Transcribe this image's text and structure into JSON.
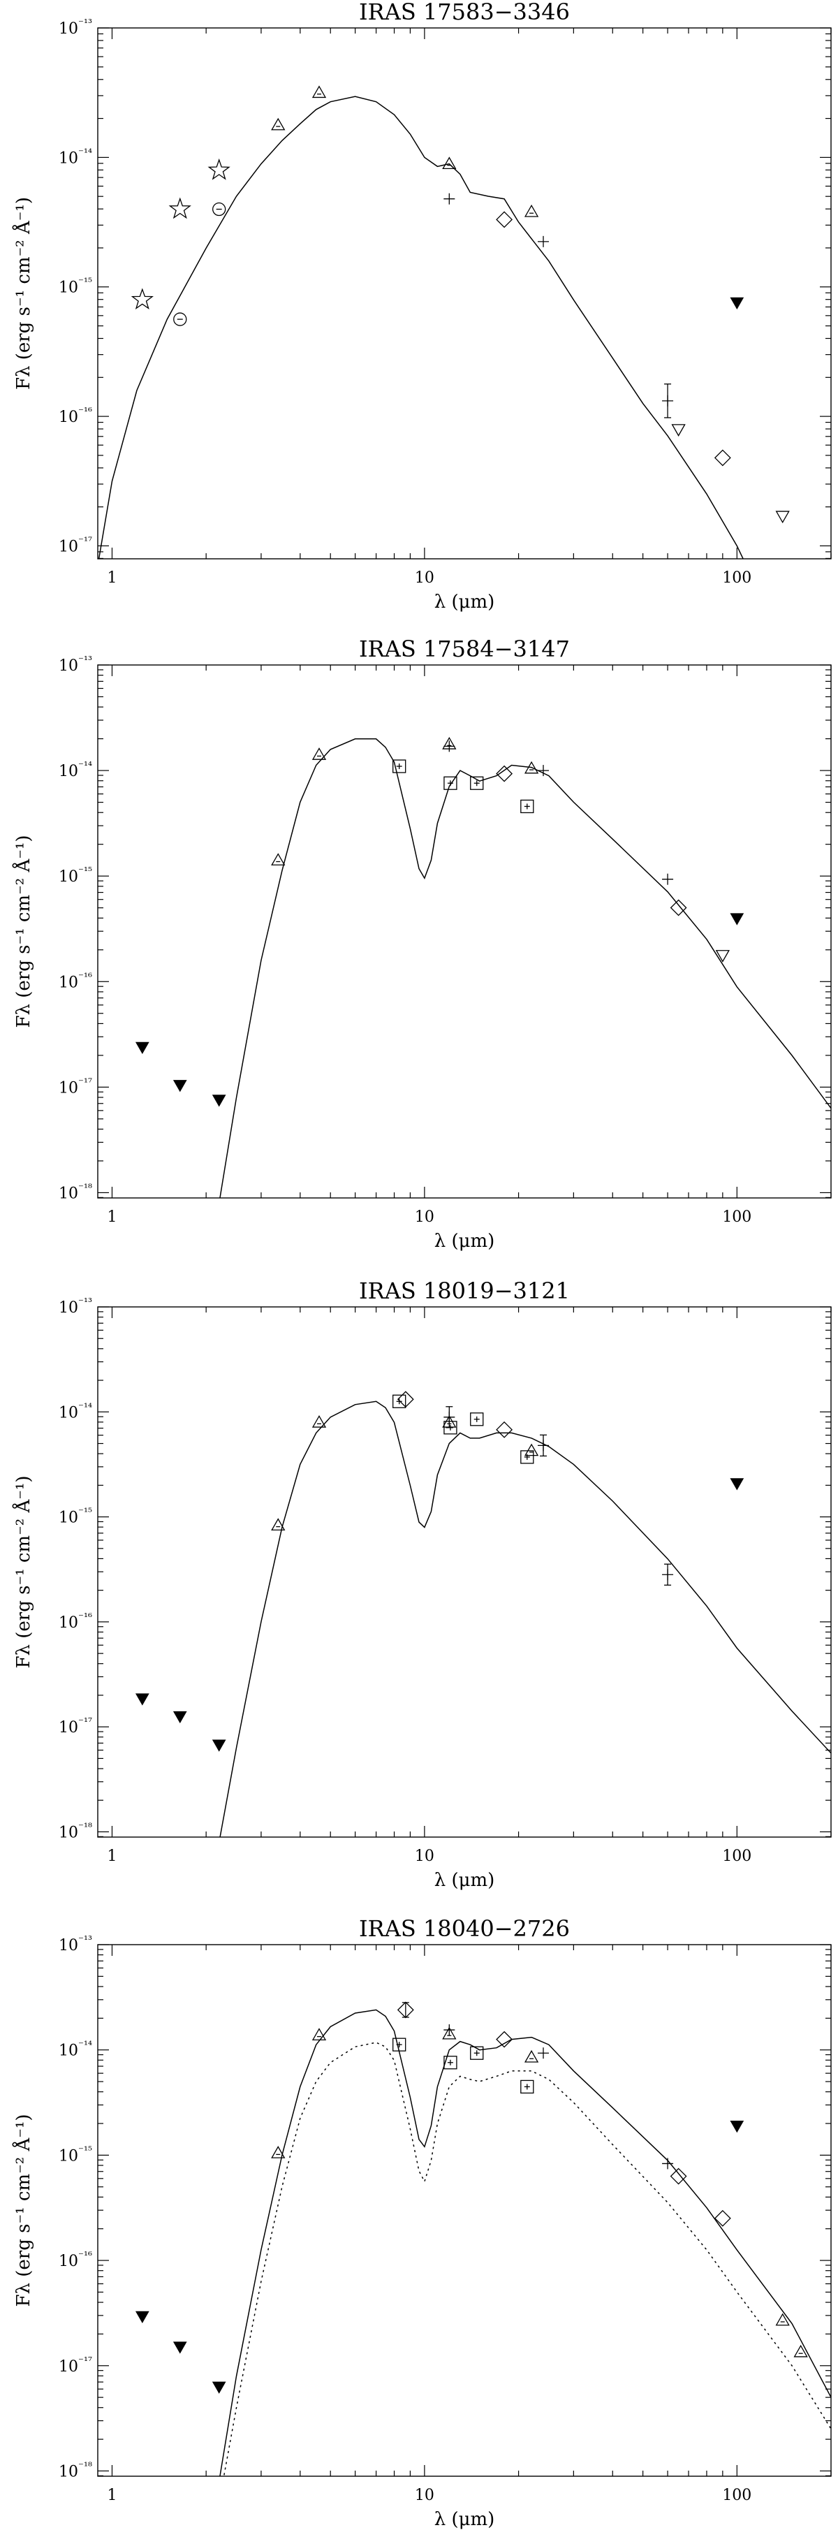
{
  "chart_data": [
    {
      "type": "scatter",
      "title": "IRAS 17583−3346",
      "xscale": "log",
      "yscale": "log",
      "xlim": [
        0.9,
        200
      ],
      "ylim_exp": [
        -17.1,
        -13
      ],
      "xticks": [
        1,
        10,
        100
      ],
      "xtick_labels": [
        "1",
        "10",
        "100"
      ],
      "yticks": [
        -17,
        -16,
        -15,
        -14,
        -13
      ],
      "xlabel": "λ (μm)",
      "ylabel": "Fλ (erg s⁻¹ cm⁻² Å⁻¹)",
      "model_solid": [
        [
          0.9,
          -17.15
        ],
        [
          1.0,
          -16.5
        ],
        [
          1.2,
          -15.8
        ],
        [
          1.5,
          -15.25
        ],
        [
          2.0,
          -14.7
        ],
        [
          2.5,
          -14.3
        ],
        [
          3.0,
          -14.05
        ],
        [
          3.5,
          -13.87
        ],
        [
          4.0,
          -13.74
        ],
        [
          4.5,
          -13.63
        ],
        [
          5.0,
          -13.57
        ],
        [
          6.0,
          -13.53
        ],
        [
          7.0,
          -13.57
        ],
        [
          8.0,
          -13.67
        ],
        [
          9.0,
          -13.82
        ],
        [
          10.0,
          -14.0
        ],
        [
          11.0,
          -14.07
        ],
        [
          12.0,
          -14.05
        ],
        [
          13.0,
          -14.13
        ],
        [
          14.0,
          -14.27
        ],
        [
          16.0,
          -14.3
        ],
        [
          18.0,
          -14.32
        ],
        [
          20.0,
          -14.5
        ],
        [
          25.0,
          -14.8
        ],
        [
          30.0,
          -15.1
        ],
        [
          40.0,
          -15.55
        ],
        [
          50.0,
          -15.9
        ],
        [
          60.0,
          -16.15
        ],
        [
          80.0,
          -16.6
        ],
        [
          100.0,
          -17.0
        ],
        [
          120.0,
          -17.4
        ]
      ],
      "model_dotted": [],
      "points": [
        {
          "m": "star",
          "x": 1.25,
          "y": -15.1
        },
        {
          "m": "star",
          "x": 1.65,
          "y": -14.4
        },
        {
          "m": "star",
          "x": 2.2,
          "y": -14.1
        },
        {
          "m": "circle",
          "x": 1.65,
          "y": -15.25
        },
        {
          "m": "circle",
          "x": 2.2,
          "y": -14.4
        },
        {
          "m": "triangle",
          "x": 3.4,
          "y": -13.75
        },
        {
          "m": "triangle",
          "x": 4.6,
          "y": -13.5
        },
        {
          "m": "triangle",
          "x": 12.0,
          "y": -14.05
        },
        {
          "m": "triangle",
          "x": 22.0,
          "y": -14.42
        },
        {
          "m": "plus",
          "x": 12.0,
          "y": -14.32
        },
        {
          "m": "plus",
          "x": 24.0,
          "y": -14.65
        },
        {
          "m": "plus",
          "x": 60.0,
          "y": -15.88,
          "err": 0.13
        },
        {
          "m": "diamond",
          "x": 18.0,
          "y": -14.48
        },
        {
          "m": "diamond",
          "x": 90.0,
          "y": -16.32
        },
        {
          "m": "tri_down",
          "x": 65.0,
          "y": -16.1
        },
        {
          "m": "tri_down",
          "x": 140.0,
          "y": -16.77
        },
        {
          "m": "tri_fill",
          "x": 100.0,
          "y": -15.12
        }
      ]
    },
    {
      "type": "scatter",
      "title": "IRAS 17584−3147",
      "xscale": "log",
      "yscale": "log",
      "xlim": [
        0.9,
        200
      ],
      "ylim_exp": [
        -18.05,
        -13
      ],
      "xticks": [
        1,
        10,
        100
      ],
      "xtick_labels": [
        "1",
        "10",
        "100"
      ],
      "yticks": [
        -18,
        -17,
        -16,
        -15,
        -14,
        -13
      ],
      "xlabel": "λ (μm)",
      "ylabel": "Fλ (erg s⁻¹ cm⁻² Å⁻¹)",
      "model_solid": [
        [
          2.2,
          -18.1
        ],
        [
          2.5,
          -17.1
        ],
        [
          3.0,
          -15.8
        ],
        [
          3.5,
          -14.95
        ],
        [
          4.0,
          -14.3
        ],
        [
          4.5,
          -13.95
        ],
        [
          5.0,
          -13.8
        ],
        [
          6.0,
          -13.7
        ],
        [
          7.0,
          -13.7
        ],
        [
          7.5,
          -13.78
        ],
        [
          8.0,
          -13.92
        ],
        [
          9.0,
          -14.55
        ],
        [
          9.6,
          -14.93
        ],
        [
          10.0,
          -15.02
        ],
        [
          10.5,
          -14.85
        ],
        [
          11.0,
          -14.5
        ],
        [
          12.0,
          -14.15
        ],
        [
          13.0,
          -14.0
        ],
        [
          14.0,
          -14.05
        ],
        [
          15.0,
          -14.1
        ],
        [
          17.0,
          -14.05
        ],
        [
          19.0,
          -13.95
        ],
        [
          22.0,
          -13.97
        ],
        [
          25.0,
          -14.05
        ],
        [
          30.0,
          -14.3
        ],
        [
          40.0,
          -14.65
        ],
        [
          60.0,
          -15.15
        ],
        [
          80.0,
          -15.6
        ],
        [
          100.0,
          -16.05
        ],
        [
          150.0,
          -16.7
        ],
        [
          200.0,
          -17.2
        ]
      ],
      "model_dotted": [],
      "points": [
        {
          "m": "tri_fill",
          "x": 1.25,
          "y": -16.62
        },
        {
          "m": "tri_fill",
          "x": 1.65,
          "y": -16.98
        },
        {
          "m": "tri_fill",
          "x": 2.2,
          "y": -17.12
        },
        {
          "m": "tri_fill",
          "x": 100.0,
          "y": -15.4
        },
        {
          "m": "triangle",
          "x": 3.4,
          "y": -14.85
        },
        {
          "m": "triangle",
          "x": 4.6,
          "y": -13.85
        },
        {
          "m": "triangle",
          "x": 12.0,
          "y": -13.75
        },
        {
          "m": "triangle",
          "x": 22.0,
          "y": -13.98
        },
        {
          "m": "square",
          "x": 8.3,
          "y": -13.96
        },
        {
          "m": "square",
          "x": 12.1,
          "y": -14.12
        },
        {
          "m": "square",
          "x": 14.7,
          "y": -14.12
        },
        {
          "m": "square",
          "x": 21.3,
          "y": -14.34
        },
        {
          "m": "plus",
          "x": 12.0,
          "y": -13.77
        },
        {
          "m": "plus",
          "x": 24.0,
          "y": -14.0
        },
        {
          "m": "plus",
          "x": 60.0,
          "y": -15.03
        },
        {
          "m": "diamond",
          "x": 18.0,
          "y": -14.03
        },
        {
          "m": "diamond",
          "x": 65.0,
          "y": -15.3
        },
        {
          "m": "tri_down",
          "x": 90.0,
          "y": -15.75
        }
      ]
    },
    {
      "type": "scatter",
      "title": "IRAS 18019−3121",
      "xscale": "log",
      "yscale": "log",
      "xlim": [
        0.9,
        200
      ],
      "ylim_exp": [
        -18.05,
        -13
      ],
      "xticks": [
        1,
        10,
        100
      ],
      "xtick_labels": [
        "1",
        "10",
        "100"
      ],
      "yticks": [
        -18,
        -17,
        -16,
        -15,
        -14,
        -13
      ],
      "xlabel": "λ (μm)",
      "ylabel": "Fλ (erg s⁻¹ cm⁻² Å⁻¹)",
      "model_solid": [
        [
          2.2,
          -18.1
        ],
        [
          2.5,
          -17.2
        ],
        [
          3.0,
          -16.0
        ],
        [
          3.5,
          -15.1
        ],
        [
          4.0,
          -14.5
        ],
        [
          4.5,
          -14.2
        ],
        [
          5.0,
          -14.05
        ],
        [
          6.0,
          -13.93
        ],
        [
          7.0,
          -13.9
        ],
        [
          7.5,
          -13.96
        ],
        [
          8.0,
          -14.1
        ],
        [
          9.0,
          -14.7
        ],
        [
          9.6,
          -15.05
        ],
        [
          10.0,
          -15.1
        ],
        [
          10.5,
          -14.95
        ],
        [
          11.0,
          -14.6
        ],
        [
          12.0,
          -14.3
        ],
        [
          13.0,
          -14.2
        ],
        [
          14.0,
          -14.25
        ],
        [
          15.0,
          -14.25
        ],
        [
          17.0,
          -14.2
        ],
        [
          19.0,
          -14.2
        ],
        [
          22.0,
          -14.25
        ],
        [
          25.0,
          -14.33
        ],
        [
          30.0,
          -14.5
        ],
        [
          40.0,
          -14.85
        ],
        [
          60.0,
          -15.4
        ],
        [
          80.0,
          -15.85
        ],
        [
          100.0,
          -16.25
        ],
        [
          150.0,
          -16.85
        ],
        [
          200.0,
          -17.25
        ]
      ],
      "model_dotted": [],
      "points": [
        {
          "m": "tri_fill",
          "x": 1.25,
          "y": -16.73
        },
        {
          "m": "tri_fill",
          "x": 1.65,
          "y": -16.9
        },
        {
          "m": "tri_fill",
          "x": 2.2,
          "y": -17.17
        },
        {
          "m": "tri_fill",
          "x": 100.0,
          "y": -14.68
        },
        {
          "m": "triangle",
          "x": 3.4,
          "y": -15.08
        },
        {
          "m": "triangle",
          "x": 4.6,
          "y": -14.1
        },
        {
          "m": "triangle",
          "x": 12.0,
          "y": -14.1
        },
        {
          "m": "triangle",
          "x": 22.0,
          "y": -14.37
        },
        {
          "m": "square",
          "x": 8.3,
          "y": -13.9
        },
        {
          "m": "square",
          "x": 12.1,
          "y": -14.15
        },
        {
          "m": "square",
          "x": 14.7,
          "y": -14.07
        },
        {
          "m": "square",
          "x": 21.3,
          "y": -14.43
        },
        {
          "m": "plus",
          "x": 12.0,
          "y": -14.05,
          "err": 0.1
        },
        {
          "m": "plus",
          "x": 24.0,
          "y": -14.32,
          "err": 0.1
        },
        {
          "m": "plus",
          "x": 60.0,
          "y": -15.55,
          "err": 0.1
        },
        {
          "m": "diamond",
          "x": 8.7,
          "y": -13.88
        },
        {
          "m": "diamond",
          "x": 18.0,
          "y": -14.17
        }
      ]
    },
    {
      "type": "scatter",
      "title": "IRAS 18040−2726",
      "xscale": "log",
      "yscale": "log",
      "xlim": [
        0.9,
        200
      ],
      "ylim_exp": [
        -18.05,
        -13
      ],
      "xticks": [
        1,
        10,
        100
      ],
      "xtick_labels": [
        "1",
        "10",
        "100"
      ],
      "yticks": [
        -18,
        -17,
        -16,
        -15,
        -14,
        -13
      ],
      "xlabel": "λ (μm)",
      "ylabel": "Fλ (erg s⁻¹ cm⁻² Å⁻¹)",
      "model_solid": [
        [
          2.2,
          -18.1
        ],
        [
          2.5,
          -17.1
        ],
        [
          3.0,
          -15.9
        ],
        [
          3.5,
          -15.0
        ],
        [
          4.0,
          -14.35
        ],
        [
          4.5,
          -13.95
        ],
        [
          5.0,
          -13.78
        ],
        [
          6.0,
          -13.65
        ],
        [
          7.0,
          -13.62
        ],
        [
          7.5,
          -13.68
        ],
        [
          8.0,
          -13.82
        ],
        [
          9.0,
          -14.45
        ],
        [
          9.6,
          -14.85
        ],
        [
          10.0,
          -14.92
        ],
        [
          10.5,
          -14.72
        ],
        [
          11.0,
          -14.35
        ],
        [
          12.0,
          -14.0
        ],
        [
          13.0,
          -13.92
        ],
        [
          14.0,
          -13.95
        ],
        [
          15.0,
          -14.0
        ],
        [
          17.0,
          -13.98
        ],
        [
          19.0,
          -13.9
        ],
        [
          22.0,
          -13.88
        ],
        [
          25.0,
          -13.95
        ],
        [
          30.0,
          -14.2
        ],
        [
          40.0,
          -14.55
        ],
        [
          60.0,
          -15.05
        ],
        [
          80.0,
          -15.5
        ],
        [
          100.0,
          -15.9
        ],
        [
          150.0,
          -16.6
        ],
        [
          200.0,
          -17.3
        ]
      ],
      "model_dotted": [
        [
          2.2,
          -18.3
        ],
        [
          2.5,
          -17.4
        ],
        [
          3.0,
          -16.2
        ],
        [
          3.5,
          -15.3
        ],
        [
          4.0,
          -14.65
        ],
        [
          4.5,
          -14.3
        ],
        [
          5.0,
          -14.12
        ],
        [
          6.0,
          -13.97
        ],
        [
          7.0,
          -13.93
        ],
        [
          7.5,
          -13.97
        ],
        [
          8.0,
          -14.1
        ],
        [
          9.0,
          -14.75
        ],
        [
          9.6,
          -15.15
        ],
        [
          10.0,
          -15.25
        ],
        [
          10.5,
          -15.05
        ],
        [
          11.0,
          -14.7
        ],
        [
          12.0,
          -14.35
        ],
        [
          13.0,
          -14.25
        ],
        [
          14.0,
          -14.28
        ],
        [
          15.0,
          -14.3
        ],
        [
          17.0,
          -14.25
        ],
        [
          19.0,
          -14.2
        ],
        [
          22.0,
          -14.2
        ],
        [
          25.0,
          -14.28
        ],
        [
          30.0,
          -14.5
        ],
        [
          40.0,
          -14.9
        ],
        [
          60.0,
          -15.45
        ],
        [
          80.0,
          -15.9
        ],
        [
          100.0,
          -16.3
        ],
        [
          150.0,
          -17.0
        ],
        [
          200.0,
          -17.6
        ]
      ],
      "points": [
        {
          "m": "tri_fill",
          "x": 1.25,
          "y": -16.53
        },
        {
          "m": "tri_fill",
          "x": 1.65,
          "y": -16.82
        },
        {
          "m": "tri_fill",
          "x": 2.2,
          "y": -17.2
        },
        {
          "m": "tri_fill",
          "x": 100.0,
          "y": -14.72
        },
        {
          "m": "triangle",
          "x": 3.4,
          "y": -14.98
        },
        {
          "m": "triangle",
          "x": 4.6,
          "y": -13.86
        },
        {
          "m": "triangle",
          "x": 12.0,
          "y": -13.85
        },
        {
          "m": "triangle",
          "x": 22.0,
          "y": -14.07
        },
        {
          "m": "triangle",
          "x": 140.0,
          "y": -16.57
        },
        {
          "m": "triangle",
          "x": 160.0,
          "y": -16.87
        },
        {
          "m": "square",
          "x": 8.3,
          "y": -13.95
        },
        {
          "m": "square",
          "x": 12.1,
          "y": -14.12
        },
        {
          "m": "square",
          "x": 14.7,
          "y": -14.03
        },
        {
          "m": "square",
          "x": 21.3,
          "y": -14.35
        },
        {
          "m": "plus",
          "x": 12.0,
          "y": -13.81
        },
        {
          "m": "plus",
          "x": 24.0,
          "y": -14.03
        },
        {
          "m": "plus",
          "x": 60.0,
          "y": -15.08
        },
        {
          "m": "diamond",
          "x": 8.7,
          "y": -13.62,
          "err": 0.07
        },
        {
          "m": "diamond",
          "x": 18.0,
          "y": -13.9
        },
        {
          "m": "diamond",
          "x": 65.0,
          "y": -15.2
        },
        {
          "m": "diamond",
          "x": 90.0,
          "y": -15.6
        }
      ]
    }
  ]
}
